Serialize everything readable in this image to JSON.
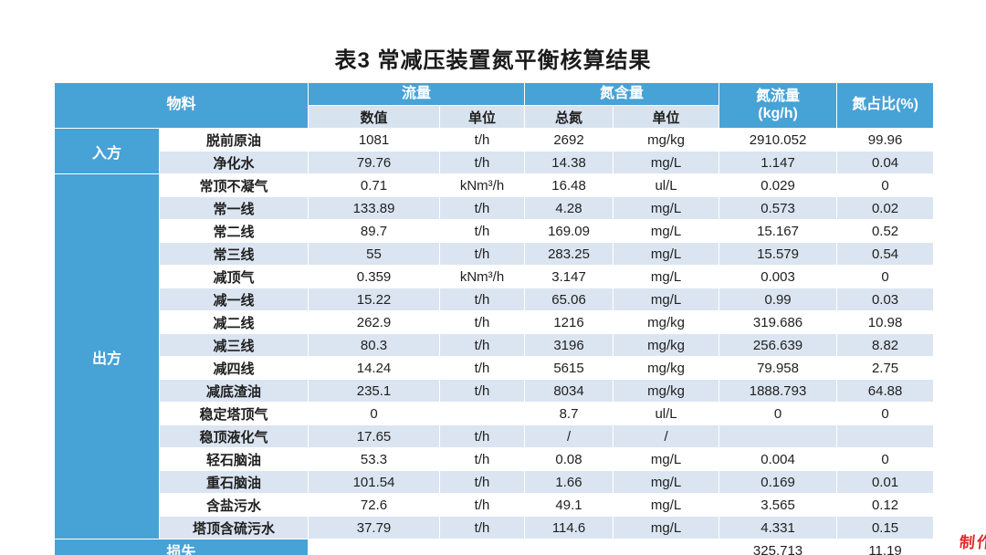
{
  "title": "表3 常减压装置氮平衡核算结果",
  "watermark": "制作",
  "colors": {
    "header_blue": "#47a2d6",
    "subheader_blue": "#d8e3f0",
    "row_alt_blue": "#dbe5f1",
    "row_white": "#ffffff",
    "header_text": "#ffffff",
    "body_text": "#1f1f1f",
    "watermark_red": "#e02b2b"
  },
  "table": {
    "headers": {
      "material": "物料",
      "flow": "流量",
      "flow_value": "数值",
      "flow_unit": "单位",
      "nitrogen": "氮含量",
      "nitrogen_value": "总氮",
      "nitrogen_unit": "单位",
      "n_flow_line1": "氮流量",
      "n_flow_line2": "(kg/h)",
      "n_pct": "氮占比(%)"
    },
    "groups": [
      {
        "key": "in",
        "label": "入方",
        "has_name": true,
        "rows": [
          [
            "脱前原油",
            "1081",
            "t/h",
            "2692",
            "mg/kg",
            "2910.052",
            "99.96"
          ],
          [
            "净化水",
            "79.76",
            "t/h",
            "14.38",
            "mg/L",
            "1.147",
            "0.04"
          ]
        ]
      },
      {
        "key": "out",
        "label": "出方",
        "has_name": true,
        "rows": [
          [
            "常顶不凝气",
            "0.71",
            "kNm³/h",
            "16.48",
            "ul/L",
            "0.029",
            "0"
          ],
          [
            "常一线",
            "133.89",
            "t/h",
            "4.28",
            "mg/L",
            "0.573",
            "0.02"
          ],
          [
            "常二线",
            "89.7",
            "t/h",
            "169.09",
            "mg/L",
            "15.167",
            "0.52"
          ],
          [
            "常三线",
            "55",
            "t/h",
            "283.25",
            "mg/L",
            "15.579",
            "0.54"
          ],
          [
            "减顶气",
            "0.359",
            "kNm³/h",
            "3.147",
            "mg/L",
            "0.003",
            "0"
          ],
          [
            "减一线",
            "15.22",
            "t/h",
            "65.06",
            "mg/L",
            "0.99",
            "0.03"
          ],
          [
            "减二线",
            "262.9",
            "t/h",
            "1216",
            "mg/kg",
            "319.686",
            "10.98"
          ],
          [
            "减三线",
            "80.3",
            "t/h",
            "3196",
            "mg/kg",
            "256.639",
            "8.82"
          ],
          [
            "减四线",
            "14.24",
            "t/h",
            "5615",
            "mg/kg",
            "79.958",
            "2.75"
          ],
          [
            "减底渣油",
            "235.1",
            "t/h",
            "8034",
            "mg/kg",
            "1888.793",
            "64.88"
          ],
          [
            "稳定塔顶气",
            "0",
            "",
            "8.7",
            "ul/L",
            "0",
            "0"
          ],
          [
            "稳顶液化气",
            "17.65",
            "t/h",
            "/",
            "/",
            "",
            ""
          ],
          [
            "轻石脑油",
            "53.3",
            "t/h",
            "0.08",
            "mg/L",
            "0.004",
            "0"
          ],
          [
            "重石脑油",
            "101.54",
            "t/h",
            "1.66",
            "mg/L",
            "0.169",
            "0.01"
          ],
          [
            "含盐污水",
            "72.6",
            "t/h",
            "49.1",
            "mg/L",
            "3.565",
            "0.12"
          ],
          [
            "塔顶含硫污水",
            "37.79",
            "t/h",
            "114.6",
            "mg/L",
            "4.331",
            "0.15"
          ]
        ]
      },
      {
        "key": "loss",
        "label": "损失",
        "has_name": false,
        "label_colspan": 2,
        "rows": [
          [
            "",
            "",
            "",
            "",
            "325.713",
            "11.19"
          ]
        ]
      }
    ]
  }
}
